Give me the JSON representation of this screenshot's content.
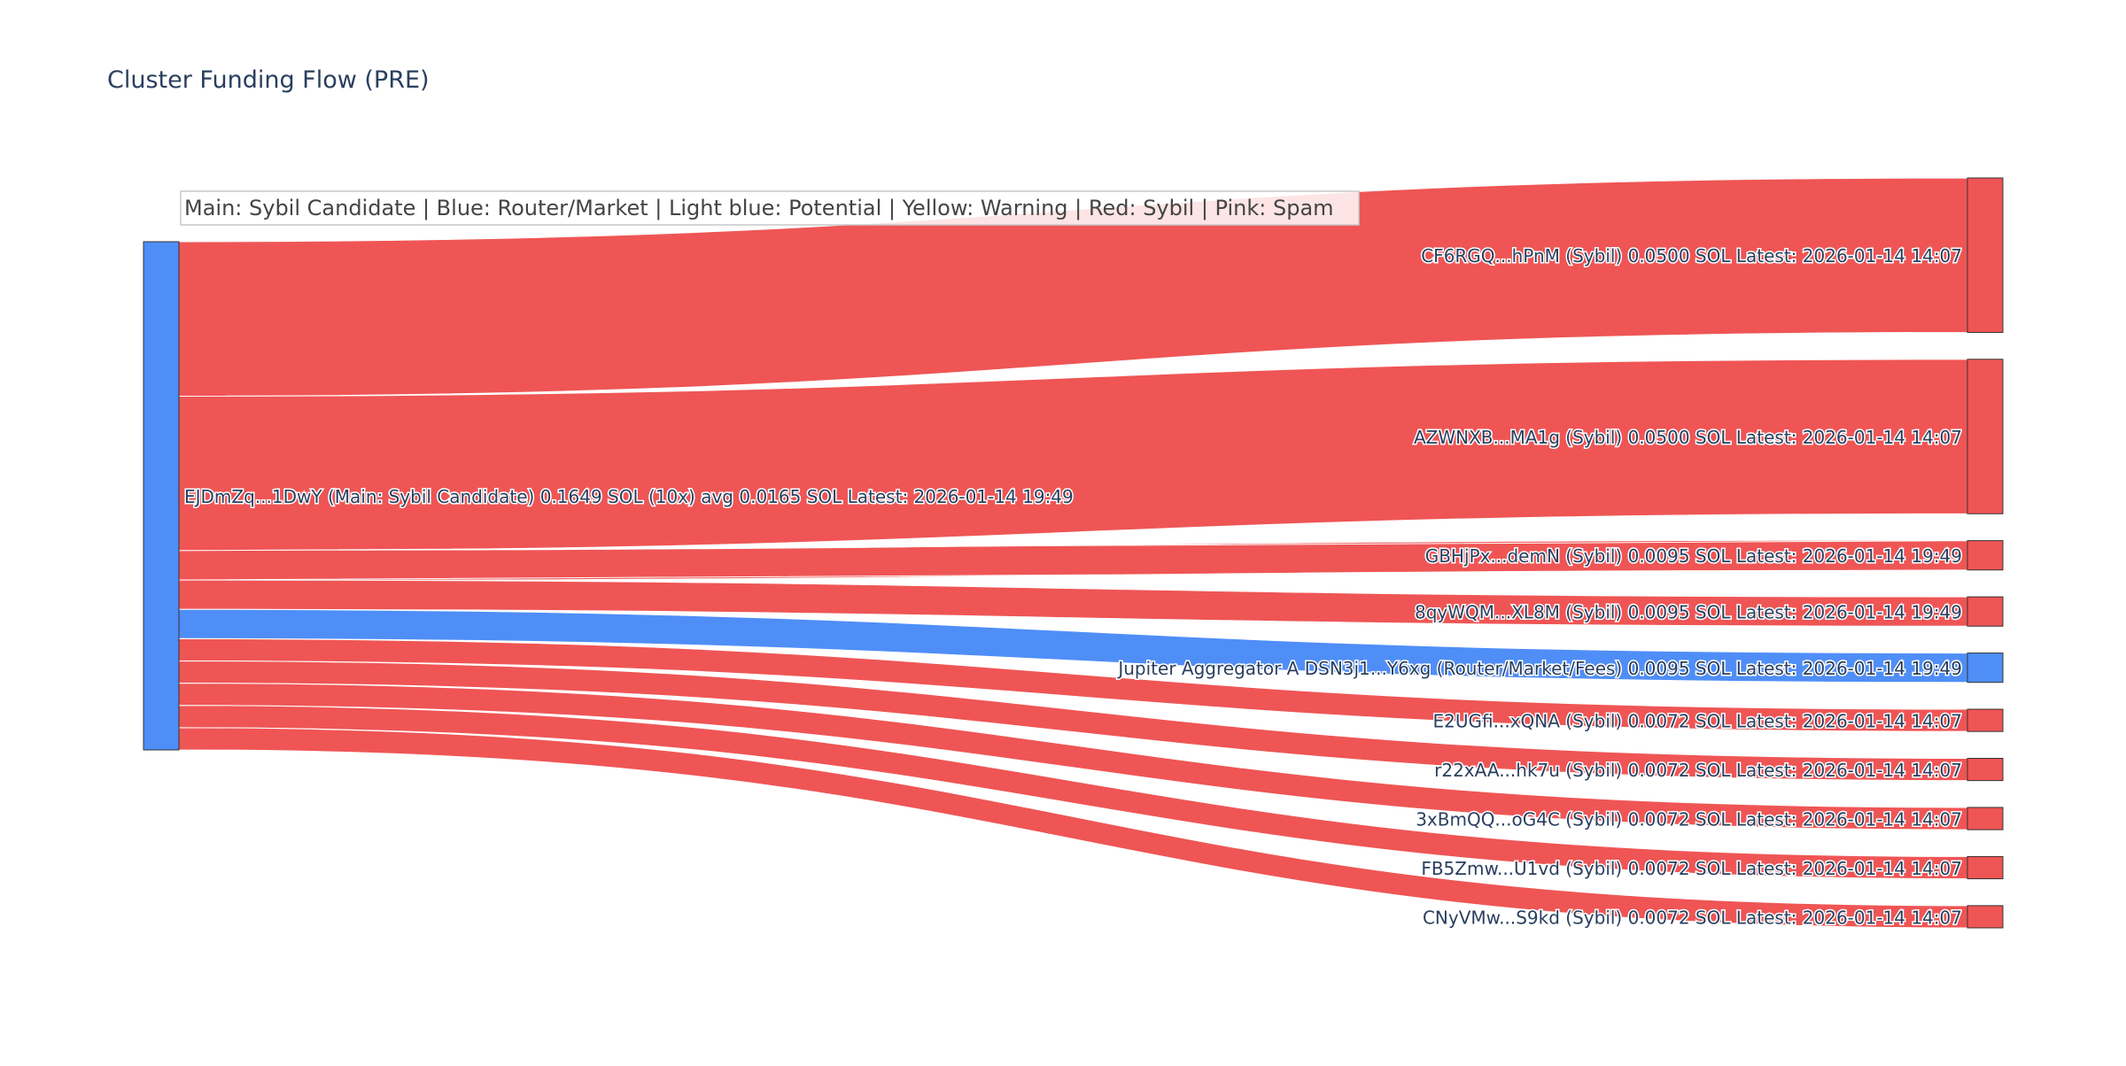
{
  "title": "Cluster Funding Flow (PRE)",
  "legend_note": "Main: Sybil Candidate  |  Blue: Router/Market | Light blue: Potential | Yellow: Warning | Red: Sybil | Pink: Spam",
  "colors": {
    "blue": "#4f8ef7",
    "red": "#ef5555",
    "title_text": "#2a3f5f",
    "node_border": "#333333"
  },
  "chart_data": {
    "type": "sankey",
    "source": {
      "id": "main",
      "label": "EJDmZq...1DwY (Main: Sybil Candidate) 0.1649 SOL (10x) avg 0.0165 SOL Latest: 2026-01-14 19:49",
      "role": "Main: Sybil Candidate",
      "color": "#4f8ef7",
      "total_sol": 0.1649,
      "tx_count": 10,
      "avg_sol": 0.0165,
      "latest": "2026-01-14 19:49"
    },
    "targets": [
      {
        "label": "CF6RGQ...hPnM (Sybil) 0.0500 SOL Latest: 2026-01-14 14:07",
        "category": "Sybil",
        "value": 0.05,
        "latest": "2026-01-14 14:07",
        "color": "#ef5555"
      },
      {
        "label": "AZWNXB...MA1g (Sybil) 0.0500 SOL Latest: 2026-01-14 14:07",
        "category": "Sybil",
        "value": 0.05,
        "latest": "2026-01-14 14:07",
        "color": "#ef5555"
      },
      {
        "label": "GBHjPx...demN (Sybil) 0.0095 SOL Latest: 2026-01-14 19:49",
        "category": "Sybil",
        "value": 0.0095,
        "latest": "2026-01-14 19:49",
        "color": "#ef5555"
      },
      {
        "label": "8qyWQM...XL8M (Sybil) 0.0095 SOL Latest: 2026-01-14 19:49",
        "category": "Sybil",
        "value": 0.0095,
        "latest": "2026-01-14 19:49",
        "color": "#ef5555"
      },
      {
        "label": "Jupiter Aggregator A DSN3j1...Y6xg (Router/Market/Fees) 0.0095 SOL Latest: 2026-01-14 19:49",
        "category": "Router/Market/Fees",
        "value": 0.0095,
        "latest": "2026-01-14 19:49",
        "color": "#4f8ef7"
      },
      {
        "label": "E2UGfi...xQNA (Sybil) 0.0072 SOL Latest: 2026-01-14 14:07",
        "category": "Sybil",
        "value": 0.0072,
        "latest": "2026-01-14 14:07",
        "color": "#ef5555"
      },
      {
        "label": "r22xAA...hk7u (Sybil) 0.0072 SOL Latest: 2026-01-14 14:07",
        "category": "Sybil",
        "value": 0.0072,
        "latest": "2026-01-14 14:07",
        "color": "#ef5555"
      },
      {
        "label": "3xBmQQ...oG4C (Sybil) 0.0072 SOL Latest: 2026-01-14 14:07",
        "category": "Sybil",
        "value": 0.0072,
        "latest": "2026-01-14 14:07",
        "color": "#ef5555"
      },
      {
        "label": "FB5Zmw...U1vd (Sybil) 0.0072 SOL Latest: 2026-01-14 14:07",
        "category": "Sybil",
        "value": 0.0072,
        "latest": "2026-01-14 14:07",
        "color": "#ef5555"
      },
      {
        "label": "CNyVMw...S9kd (Sybil) 0.0072 SOL Latest: 2026-01-14 14:07",
        "category": "Sybil",
        "value": 0.0072,
        "latest": "2026-01-14 14:07",
        "color": "#ef5555"
      }
    ]
  }
}
